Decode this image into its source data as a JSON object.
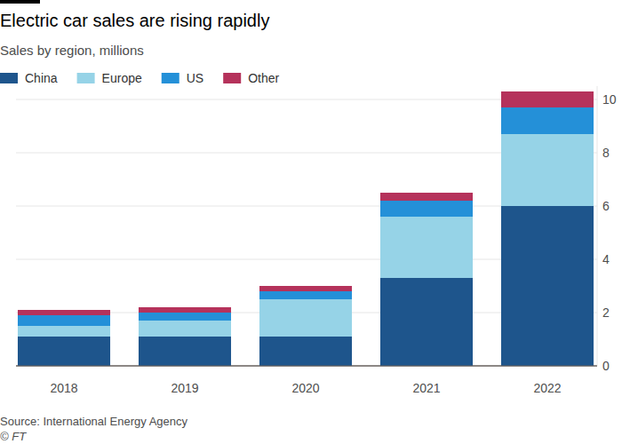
{
  "chart_data": {
    "type": "bar",
    "title": "Electric car sales are rising rapidly",
    "subtitle": "Sales by region, millions",
    "categories": [
      "2018",
      "2019",
      "2020",
      "2021",
      "2022"
    ],
    "series": [
      {
        "name": "China",
        "color": "#1e558c",
        "values": [
          1.1,
          1.1,
          1.1,
          3.3,
          6.0
        ]
      },
      {
        "name": "Europe",
        "color": "#96d3e7",
        "values": [
          0.4,
          0.6,
          1.4,
          2.3,
          2.7
        ]
      },
      {
        "name": "US",
        "color": "#2490d8",
        "values": [
          0.4,
          0.3,
          0.3,
          0.6,
          1.0
        ]
      },
      {
        "name": "Other",
        "color": "#b5325b",
        "values": [
          0.2,
          0.2,
          0.2,
          0.3,
          0.6
        ]
      }
    ],
    "ylim": [
      0,
      10.5
    ],
    "yticks": [
      0,
      2,
      4,
      6,
      8,
      10
    ],
    "stacked": true,
    "grid": true,
    "legend": "top-left",
    "annotations": [
      "Source: International Energy Agency",
      "© FT"
    ]
  }
}
